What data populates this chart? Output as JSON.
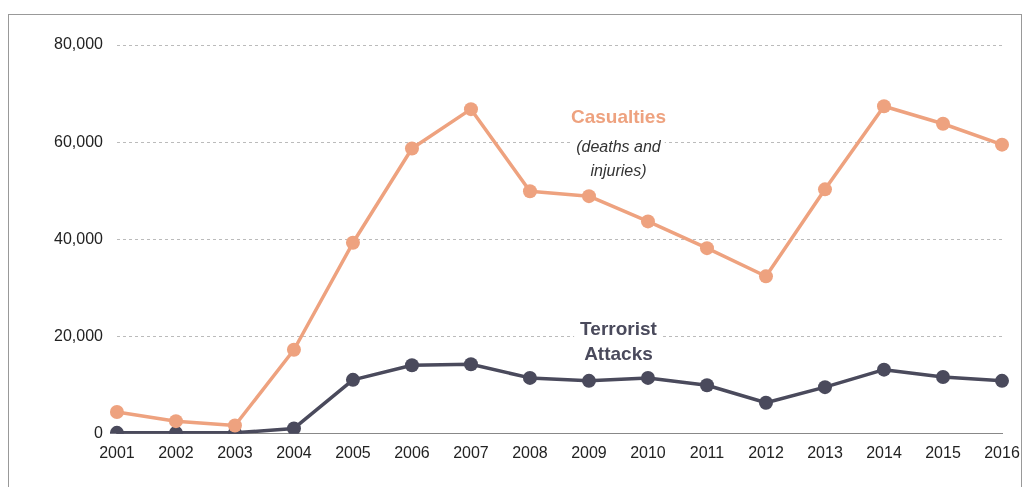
{
  "chart_data": {
    "type": "line",
    "categories": [
      "2001",
      "2002",
      "2003",
      "2004",
      "2005",
      "2006",
      "2007",
      "2008",
      "2009",
      "2010",
      "2011",
      "2012",
      "2013",
      "2014",
      "2015",
      "2016"
    ],
    "series": [
      {
        "name": "Casualties",
        "color": "#eea27f",
        "values": [
          4500,
          2600,
          1700,
          17300,
          39300,
          58700,
          66800,
          49900,
          48900,
          43700,
          38200,
          32400,
          50300,
          67400,
          63800,
          59500
        ]
      },
      {
        "name": "Terrorist Attacks",
        "color": "#4a4a5c",
        "values": [
          200,
          200,
          200,
          1100,
          11100,
          14100,
          14300,
          11500,
          10900,
          11500,
          10000,
          6400,
          9600,
          13200,
          11700,
          10900
        ]
      }
    ],
    "annotations": [
      "(deaths and injuries)"
    ],
    "ylim": [
      0,
      80000
    ],
    "yticks": [
      0,
      {
        "value": 20000,
        "label": "20,000"
      },
      {
        "value": 40000,
        "label": "40,000"
      },
      {
        "value": 60000,
        "label": "60,000"
      },
      {
        "value": 80000,
        "label": "80,000"
      }
    ],
    "grid": "y",
    "marker": "circle",
    "line_style": "solid",
    "legend": false
  }
}
